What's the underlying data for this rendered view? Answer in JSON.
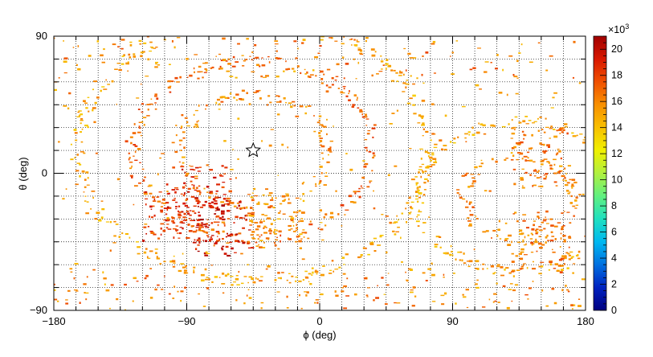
{
  "chart_data": {
    "type": "heatmap",
    "title": "",
    "xlabel": "ϕ (deg)",
    "ylabel": "θ (deg)",
    "xlim": [
      -180,
      180
    ],
    "ylim": [
      -90,
      90
    ],
    "x_ticks": [
      -180,
      -90,
      0,
      90,
      180
    ],
    "x_tick_labels": [
      "−180",
      "−90",
      "0",
      "90",
      "180"
    ],
    "y_ticks": [
      -90,
      0,
      90
    ],
    "y_tick_labels": [
      "−90",
      "0",
      "90"
    ],
    "grid": true,
    "colorbar": {
      "multiplier_label": "×10",
      "multiplier_exponent": "3",
      "range": [
        0,
        21
      ],
      "ticks": [
        0,
        2,
        4,
        6,
        8,
        10,
        12,
        14,
        16,
        18,
        20
      ],
      "tick_labels": [
        "0",
        "2",
        "4",
        "6",
        "8",
        "10",
        "12",
        "14",
        "16",
        "18",
        "20"
      ],
      "colors": [
        "#000080",
        "#0022c0",
        "#0070e0",
        "#00b8f0",
        "#20e0c0",
        "#60f080",
        "#b0f040",
        "#f0f000",
        "#f8c000",
        "#f89000",
        "#f05000",
        "#d81800",
        "#a00000"
      ]
    },
    "marker": {
      "symbol": "star",
      "phi": -45,
      "theta": 15
    },
    "arcs": [
      {
        "phi_center": -45,
        "theta_center": 15,
        "radius_deg": 40,
        "value": 16
      },
      {
        "phi_center": -45,
        "theta_center": 15,
        "radius_deg": 65,
        "value": 17
      },
      {
        "phi_center": -45,
        "theta_center": 15,
        "radius_deg": 95,
        "value": 15
      },
      {
        "phi_center": 135,
        "theta_center": -15,
        "radius_deg": 30,
        "value": 16
      },
      {
        "phi_center": 135,
        "theta_center": -15,
        "radius_deg": 55,
        "value": 15
      }
    ],
    "hot_regions": [
      {
        "phi": -80,
        "theta": -15,
        "value": 20
      },
      {
        "phi": -65,
        "theta": -35,
        "value": 21
      },
      {
        "phi": -100,
        "theta": -25,
        "value": 20
      },
      {
        "phi": 150,
        "theta": 10,
        "value": 18
      },
      {
        "phi": 150,
        "theta": -45,
        "value": 18
      },
      {
        "phi": -30,
        "theta": -30,
        "value": 17
      }
    ]
  }
}
